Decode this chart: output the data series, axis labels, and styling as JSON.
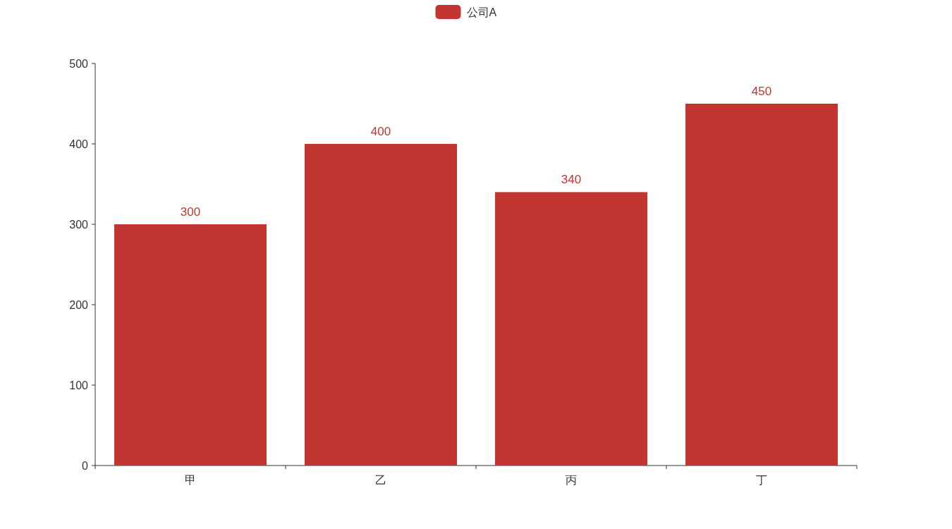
{
  "chart_data": {
    "type": "bar",
    "categories": [
      "甲",
      "乙",
      "丙",
      "丁"
    ],
    "series": [
      {
        "name": "公司A",
        "color": "#c23531",
        "values": [
          300,
          400,
          340,
          450
        ]
      }
    ],
    "ylim": [
      0,
      500
    ],
    "yticks": [
      0,
      100,
      200,
      300,
      400,
      500
    ],
    "data_labels": true,
    "legend": "top",
    "grid": false
  }
}
